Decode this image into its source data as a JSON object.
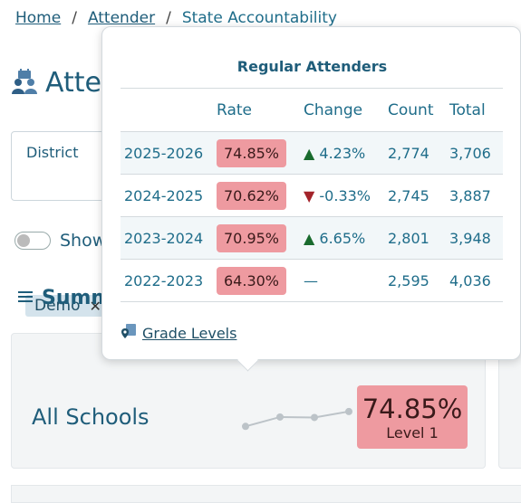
{
  "breadcrumb": {
    "home": "Home",
    "section": "Attender",
    "current": "State Accountability"
  },
  "page": {
    "title": "Atten"
  },
  "filter": {
    "label": "District",
    "chip": "Demo",
    "chip_remove": "✕"
  },
  "toggle": {
    "label": "Show"
  },
  "summary": {
    "title": "Summ"
  },
  "card": {
    "name": "All Schools",
    "rate": "74.85%",
    "level": "Level 1",
    "sparkline": [
      64.3,
      70.95,
      70.62,
      74.85
    ]
  },
  "popover": {
    "title": "Regular Attenders",
    "columns": [
      "",
      "Rate",
      "Change",
      "Count",
      "Total"
    ],
    "rows": [
      {
        "year": "2025-2026",
        "rate": "74.85%",
        "change": "4.23%",
        "dir": "up",
        "count": "2,774",
        "total": "3,706"
      },
      {
        "year": "2024-2025",
        "rate": "70.62%",
        "change": "-0.33%",
        "dir": "down",
        "count": "2,745",
        "total": "3,887"
      },
      {
        "year": "2023-2024",
        "rate": "70.95%",
        "change": "6.65%",
        "dir": "up",
        "count": "2,801",
        "total": "3,948"
      },
      {
        "year": "2022-2023",
        "rate": "64.30%",
        "change": "—",
        "dir": "none",
        "count": "2,595",
        "total": "4,036"
      }
    ],
    "link": "Grade Levels"
  },
  "colors": {
    "primary": "#1f5d7a",
    "rate_badge": "#ee9aa0",
    "up": "#1a6b2e",
    "down": "#a3232a"
  }
}
